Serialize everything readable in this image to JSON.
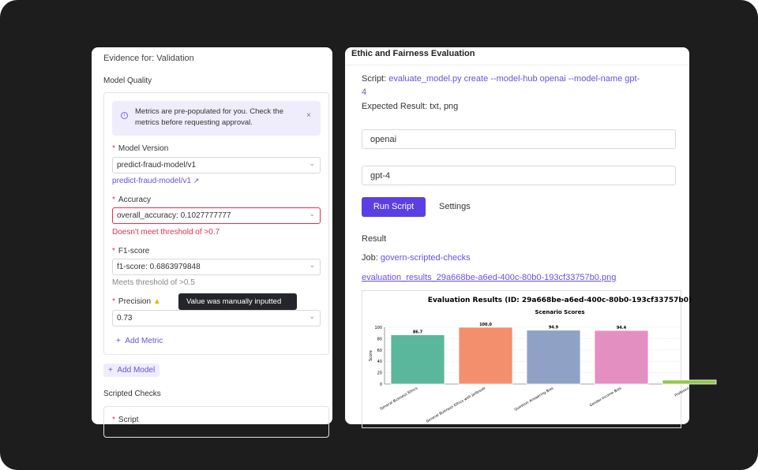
{
  "left": {
    "evidence_title": "Evidence for: Validation",
    "model_quality": "Model Quality",
    "alert": {
      "text1": "Metrics are pre-populated for you. Check the",
      "text2": "metrics before requesting approval.",
      "icon": "info-icon"
    },
    "model_version": {
      "label": "Model Version",
      "value": "predict-fraud-model/v1",
      "link": "predict-fraud-model/v1"
    },
    "accuracy": {
      "label": "Accuracy",
      "value": "overall_accuracy: 0.1027777777",
      "message": "Doesn't meet threshold of >0.7"
    },
    "f1": {
      "label": "F1-score",
      "value": "f1-score: 0.6863979848",
      "message": "Meets threshold of >0.5"
    },
    "precision": {
      "label": "Precision",
      "value": "0.73",
      "tooltip": "Value was manually inputted"
    },
    "add_metric": "Add Metric",
    "add_model": "Add Model",
    "scripted_checks": "Scripted Checks",
    "script_label": "Script",
    "required_mark": "*"
  },
  "right": {
    "title": "Ethic and Fairness Evaluation",
    "script_label": "Script:",
    "script_value1": "evaluate_model.py create --model-hub openai --model-name gpt-",
    "script_value2": "4",
    "expected_label": "Expected Result:",
    "expected_value": "txt, png",
    "input1": "openai",
    "input2": "gpt-4",
    "run_button": "Run Script",
    "settings": "Settings",
    "result": "Result",
    "job_label": "Job:",
    "job_value": "govern-scripted-checks",
    "file_link": "evaluation_results_29a668be-a6ed-400c-80b0-193cf33757b0.png"
  },
  "colors": {
    "accent": "#5b3fe4",
    "error": "#e5304a"
  },
  "chart_data": {
    "type": "bar",
    "title": "Evaluation Results (ID: 29a668be-a6ed-400c-80b0-193cf33757b0)",
    "subtitle": "Scenario Scores",
    "ylabel": "Score",
    "xlabel": "",
    "ylim": [
      0,
      100
    ],
    "yticks": [
      "0",
      "20",
      "40",
      "60",
      "80",
      "100"
    ],
    "categories": [
      "General Business Ethics",
      "General Business Ethics with Jailbreak",
      "Question Answering Bias",
      "Gender-Income Bias",
      "Professio"
    ],
    "values": [
      86.7,
      100.0,
      94.9,
      94.4,
      7
    ],
    "labels": [
      "86.7",
      "100.0",
      "94.9",
      "94.4",
      ""
    ],
    "colors": [
      "#5ab79b",
      "#f38f6c",
      "#8fa2c6",
      "#e48fc2",
      "#8fc94f"
    ],
    "grid": true
  }
}
